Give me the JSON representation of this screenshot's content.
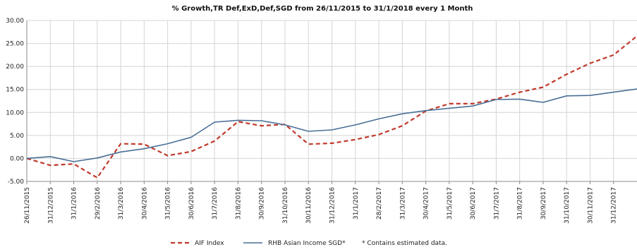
{
  "chart_data": {
    "type": "line",
    "title": "% Growth,TR Def,ExD,Def,SGD from 26/11/2015 to 31/1/2018 every 1 Month",
    "xlabel": "",
    "ylabel": "",
    "ylim": [
      -5,
      30
    ],
    "yticks": [
      -5,
      0,
      5,
      10,
      15,
      20,
      25,
      30
    ],
    "ytick_labels": [
      "-5.00",
      "0.00",
      "5.00",
      "10.00",
      "15.00",
      "20.00",
      "25.00",
      "30.00"
    ],
    "grid": true,
    "legend_position": "bottom",
    "categories": [
      "26/11/2015",
      "31/12/2015",
      "31/1/2016",
      "29/2/2016",
      "31/3/2016",
      "30/4/2016",
      "31/5/2016",
      "30/6/2016",
      "31/7/2016",
      "31/8/2016",
      "30/9/2016",
      "31/10/2016",
      "30/11/2016",
      "31/12/2016",
      "31/1/2017",
      "28/2/2017",
      "31/3/2017",
      "30/4/2017",
      "31/5/2017",
      "30/6/2017",
      "31/7/2017",
      "31/8/2017",
      "30/9/2017",
      "31/10/2017",
      "30/11/2017",
      "31/12/2017",
      "31/1/2018"
    ],
    "x_tick_labels": [
      "26/11/2015",
      "31/12/2015",
      "31/1/2016",
      "29/2/2016",
      "31/3/2016",
      "30/4/2016",
      "31/5/2016",
      "30/6/2016",
      "31/7/2016",
      "31/8/2016",
      "30/9/2016",
      "31/10/2016",
      "30/11/2016",
      "31/12/2016",
      "31/1/2017",
      "28/2/2017",
      "31/3/2017",
      "30/4/2017",
      "31/5/2017",
      "30/6/2017",
      "31/7/2017",
      "31/8/2017",
      "30/9/2017",
      "31/10/2017",
      "30/11/2017",
      "31/12/2017"
    ],
    "series": [
      {
        "name": "AIF Index",
        "color": "#c0392b",
        "dash": true,
        "values": [
          0.0,
          -1.5,
          -1.2,
          -4.2,
          3.2,
          3.1,
          0.6,
          1.5,
          3.8,
          8.0,
          7.1,
          7.4,
          3.1,
          3.3,
          4.1,
          5.2,
          7.1,
          10.3,
          11.9,
          11.9,
          12.9,
          14.4,
          15.5,
          18.3,
          20.7,
          22.5,
          26.6
        ]
      },
      {
        "name": "RHB Asian Income SGD*",
        "color": "#4a6f96",
        "dash": false,
        "values": [
          0.0,
          0.4,
          -0.7,
          0.1,
          1.4,
          2.1,
          3.2,
          4.6,
          7.9,
          8.3,
          8.2,
          7.3,
          5.9,
          6.2,
          7.3,
          8.6,
          9.7,
          10.4,
          10.9,
          11.4,
          12.8,
          12.9,
          12.2,
          13.6,
          13.7,
          14.4,
          15.1
        ]
      }
    ],
    "note": "* Contains estimated data."
  }
}
